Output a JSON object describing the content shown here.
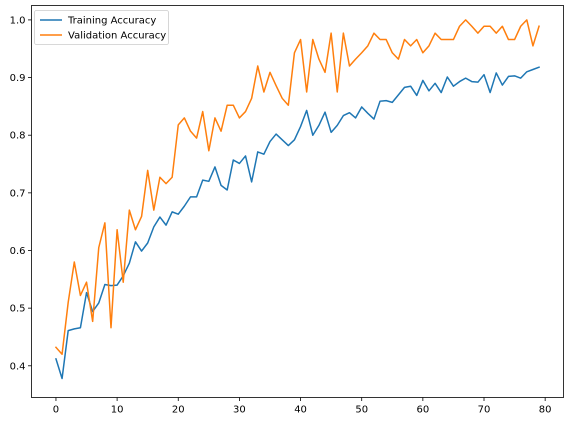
{
  "chart_data": {
    "type": "line",
    "title": "",
    "xlabel": "",
    "ylabel": "",
    "xlim": [
      -4,
      83
    ],
    "ylim": [
      0.345,
      1.025
    ],
    "xticks": [
      0,
      10,
      20,
      30,
      40,
      50,
      60,
      70,
      80
    ],
    "yticks": [
      0.4,
      0.5,
      0.6,
      0.7,
      0.8,
      0.9,
      1.0
    ],
    "grid": false,
    "legend": "top-left",
    "series": [
      {
        "name": "Training Accuracy",
        "color": "#1f77b4",
        "values": [
          0.412,
          0.378,
          0.461,
          0.464,
          0.466,
          0.527,
          0.494,
          0.509,
          0.541,
          0.539,
          0.54,
          0.556,
          0.578,
          0.615,
          0.599,
          0.613,
          0.641,
          0.658,
          0.644,
          0.667,
          0.663,
          0.677,
          0.693,
          0.693,
          0.722,
          0.72,
          0.745,
          0.713,
          0.705,
          0.757,
          0.751,
          0.764,
          0.719,
          0.771,
          0.767,
          0.789,
          0.802,
          0.792,
          0.782,
          0.792,
          0.815,
          0.843,
          0.8,
          0.817,
          0.84,
          0.805,
          0.817,
          0.834,
          0.839,
          0.83,
          0.849,
          0.838,
          0.828,
          0.859,
          0.86,
          0.857,
          0.87,
          0.883,
          0.885,
          0.869,
          0.895,
          0.877,
          0.89,
          0.874,
          0.901,
          0.885,
          0.893,
          0.899,
          0.893,
          0.892,
          0.905,
          0.874,
          0.908,
          0.887,
          0.902,
          0.903,
          0.899,
          0.91,
          0.914,
          0.918
        ]
      },
      {
        "name": "Validation Accuracy",
        "color": "#ff7f0e",
        "values": [
          0.432,
          0.42,
          0.51,
          0.58,
          0.522,
          0.545,
          0.477,
          0.605,
          0.648,
          0.466,
          0.636,
          0.545,
          0.67,
          0.636,
          0.659,
          0.739,
          0.67,
          0.727,
          0.716,
          0.727,
          0.818,
          0.83,
          0.807,
          0.795,
          0.841,
          0.773,
          0.83,
          0.807,
          0.852,
          0.852,
          0.83,
          0.841,
          0.864,
          0.92,
          0.875,
          0.909,
          0.886,
          0.864,
          0.852,
          0.943,
          0.966,
          0.875,
          0.966,
          0.932,
          0.909,
          0.977,
          0.875,
          0.977,
          0.92,
          0.932,
          0.943,
          0.955,
          0.977,
          0.966,
          0.966,
          0.943,
          0.932,
          0.966,
          0.955,
          0.966,
          0.943,
          0.955,
          0.977,
          0.966,
          0.966,
          0.966,
          0.989,
          1.0,
          0.989,
          0.977,
          0.989,
          0.989,
          0.977,
          0.989,
          0.966,
          0.966,
          0.989,
          1.0,
          0.955,
          0.989
        ]
      }
    ]
  }
}
